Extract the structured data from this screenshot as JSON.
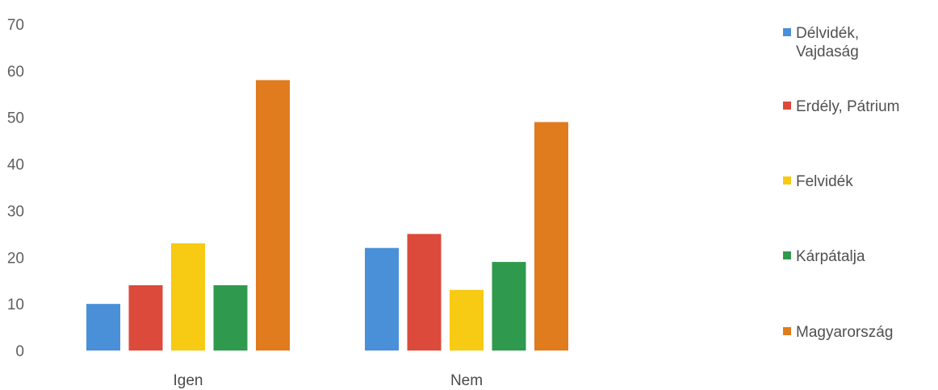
{
  "chart_data": {
    "type": "bar",
    "categories": [
      "Igen",
      "Nem"
    ],
    "series": [
      {
        "name": "Délvidék, Vajdaság",
        "values": [
          10,
          22
        ],
        "color": "#4a90d9"
      },
      {
        "name": "Erdély, Pátrium",
        "values": [
          14,
          25
        ],
        "color": "#dc4a3b"
      },
      {
        "name": "Felvidék",
        "values": [
          23,
          13
        ],
        "color": "#f7ca14"
      },
      {
        "name": "Kárpátalja",
        "values": [
          14,
          19
        ],
        "color": "#2f9a4d"
      },
      {
        "name": "Magyarország",
        "values": [
          58,
          49
        ],
        "color": "#e07b1e"
      }
    ],
    "yticks": [
      "0",
      "10",
      "20",
      "30",
      "40",
      "50",
      "60",
      "70"
    ],
    "ylim": [
      0,
      70
    ],
    "grid": false,
    "legend": "right",
    "title": "",
    "xlabel": "",
    "ylabel": ""
  }
}
